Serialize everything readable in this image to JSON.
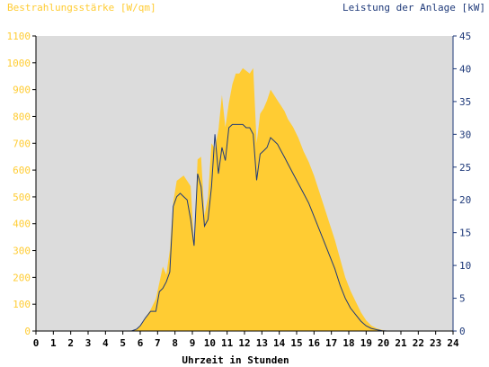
{
  "chart_data": {
    "type": "area",
    "title_left": "Bestrahlungsstärke [W/qm]",
    "title_right": "Leistung der Anlage [kW]",
    "xlabel": "Uhrzeit in Stunden",
    "xlim": [
      0,
      24
    ],
    "x_ticks": [
      "0",
      "1",
      "2",
      "3",
      "4",
      "5",
      "6",
      "7",
      "8",
      "9",
      "10",
      "11",
      "12",
      "13",
      "14",
      "15",
      "16",
      "17",
      "18",
      "19",
      "20",
      "21",
      "22",
      "23",
      "24"
    ],
    "y_left": {
      "lim": [
        0,
        1100
      ],
      "ticks": [
        "0",
        "100",
        "200",
        "300",
        "400",
        "500",
        "600",
        "700",
        "800",
        "900",
        "1000",
        "1100"
      ]
    },
    "y_right": {
      "lim": [
        0,
        45
      ],
      "ticks": [
        "0",
        "5",
        "10",
        "15",
        "20",
        "25",
        "30",
        "35",
        "40",
        "45"
      ]
    },
    "grid": false,
    "colors": {
      "plot_bg": "#dcdcdc",
      "irradiance_fill": "#ffcc33",
      "power_line": "#1f3a7a",
      "left_axis_text": "#ffcc33",
      "right_axis_text": "#1f3a7a"
    },
    "series": [
      {
        "name": "Bestrahlungsstärke [W/qm]",
        "axis": "left",
        "style": "area",
        "x": [
          0,
          5.5,
          5.8,
          6.0,
          6.3,
          6.6,
          6.9,
          7.1,
          7.3,
          7.5,
          7.7,
          7.9,
          8.1,
          8.3,
          8.5,
          8.7,
          8.9,
          9.1,
          9.3,
          9.5,
          9.7,
          9.9,
          10.1,
          10.3,
          10.5,
          10.7,
          10.9,
          11.1,
          11.3,
          11.5,
          11.7,
          11.9,
          12.1,
          12.3,
          12.5,
          12.7,
          12.9,
          13.1,
          13.3,
          13.5,
          13.7,
          13.9,
          14.1,
          14.3,
          14.5,
          14.8,
          15.1,
          15.4,
          15.7,
          16.0,
          16.3,
          16.6,
          16.9,
          17.2,
          17.5,
          17.8,
          18.1,
          18.4,
          18.7,
          19.0,
          19.3,
          19.6,
          19.9,
          20.2,
          24
        ],
        "y": [
          0,
          0,
          8,
          22,
          50,
          80,
          120,
          180,
          240,
          210,
          300,
          480,
          560,
          570,
          580,
          560,
          540,
          320,
          640,
          650,
          430,
          500,
          700,
          680,
          750,
          880,
          760,
          850,
          920,
          960,
          960,
          980,
          970,
          960,
          980,
          700,
          810,
          830,
          860,
          900,
          880,
          860,
          840,
          820,
          790,
          760,
          720,
          670,
          630,
          580,
          520,
          460,
          400,
          340,
          270,
          200,
          150,
          110,
          70,
          40,
          20,
          10,
          4,
          0,
          0
        ]
      },
      {
        "name": "Leistung der Anlage [kW]",
        "axis": "right",
        "style": "line",
        "x": [
          0,
          5.5,
          5.8,
          6.0,
          6.3,
          6.6,
          6.9,
          7.1,
          7.3,
          7.5,
          7.7,
          7.9,
          8.1,
          8.3,
          8.5,
          8.7,
          8.9,
          9.1,
          9.3,
          9.5,
          9.7,
          9.9,
          10.1,
          10.3,
          10.5,
          10.7,
          10.9,
          11.1,
          11.3,
          11.5,
          11.7,
          11.9,
          12.1,
          12.3,
          12.5,
          12.7,
          12.9,
          13.1,
          13.3,
          13.5,
          13.7,
          13.9,
          14.1,
          14.3,
          14.5,
          14.8,
          15.1,
          15.4,
          15.7,
          16.0,
          16.3,
          16.6,
          16.9,
          17.2,
          17.5,
          17.8,
          18.1,
          18.4,
          18.7,
          19.0,
          19.3,
          19.6,
          19.9,
          20.2,
          24
        ],
        "y": [
          0,
          0,
          0.3,
          0.8,
          2.0,
          3.0,
          3.0,
          6.0,
          6.5,
          7.5,
          9.0,
          19.0,
          20.5,
          21.0,
          20.5,
          20.0,
          17.0,
          13.0,
          24.0,
          22.0,
          16.0,
          17.0,
          22.0,
          30.0,
          24.0,
          28.0,
          26.0,
          31.0,
          31.5,
          31.5,
          31.5,
          31.5,
          31.0,
          31.0,
          30.0,
          23.0,
          27.0,
          27.5,
          28.0,
          29.5,
          29.0,
          28.5,
          27.5,
          26.5,
          25.5,
          24.0,
          22.5,
          21.0,
          19.5,
          17.5,
          15.5,
          13.5,
          11.5,
          9.5,
          7.0,
          5.0,
          3.5,
          2.5,
          1.5,
          0.8,
          0.4,
          0.2,
          0.05,
          0,
          0
        ]
      }
    ]
  }
}
